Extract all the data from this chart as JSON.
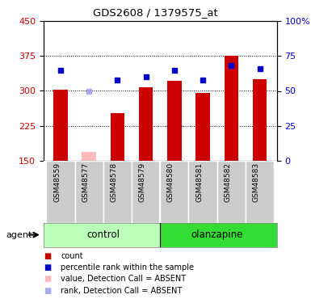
{
  "title": "GDS2608 / 1379575_at",
  "samples": [
    "GSM48559",
    "GSM48577",
    "GSM48578",
    "GSM48579",
    "GSM48580",
    "GSM48581",
    "GSM48582",
    "GSM48583"
  ],
  "bar_values": [
    302,
    0,
    252,
    308,
    322,
    295,
    376,
    325
  ],
  "bar_absent": [
    0,
    168,
    0,
    0,
    0,
    0,
    0,
    0
  ],
  "rank_pct": [
    65,
    0,
    58,
    60,
    65,
    58,
    68,
    66
  ],
  "rank_absent_pct": [
    0,
    50,
    0,
    0,
    0,
    0,
    0,
    0
  ],
  "ylim_left": [
    150,
    450
  ],
  "ylim_right": [
    0,
    100
  ],
  "yticks_left": [
    150,
    225,
    300,
    375,
    450
  ],
  "yticks_right": [
    0,
    25,
    50,
    75,
    100
  ],
  "bar_color": "#cc0000",
  "bar_absent_color": "#ffbbbb",
  "rank_color": "#0000cc",
  "rank_absent_color": "#aaaaee",
  "control_color": "#bbffbb",
  "olanzapine_color": "#33dd33",
  "sample_box_color": "#cccccc",
  "bar_width": 0.5,
  "rank_marker_size": 5,
  "left_label_color": "#cc0000",
  "right_label_color": "#0000cc",
  "n_control": 4,
  "n_olanzapine": 4
}
